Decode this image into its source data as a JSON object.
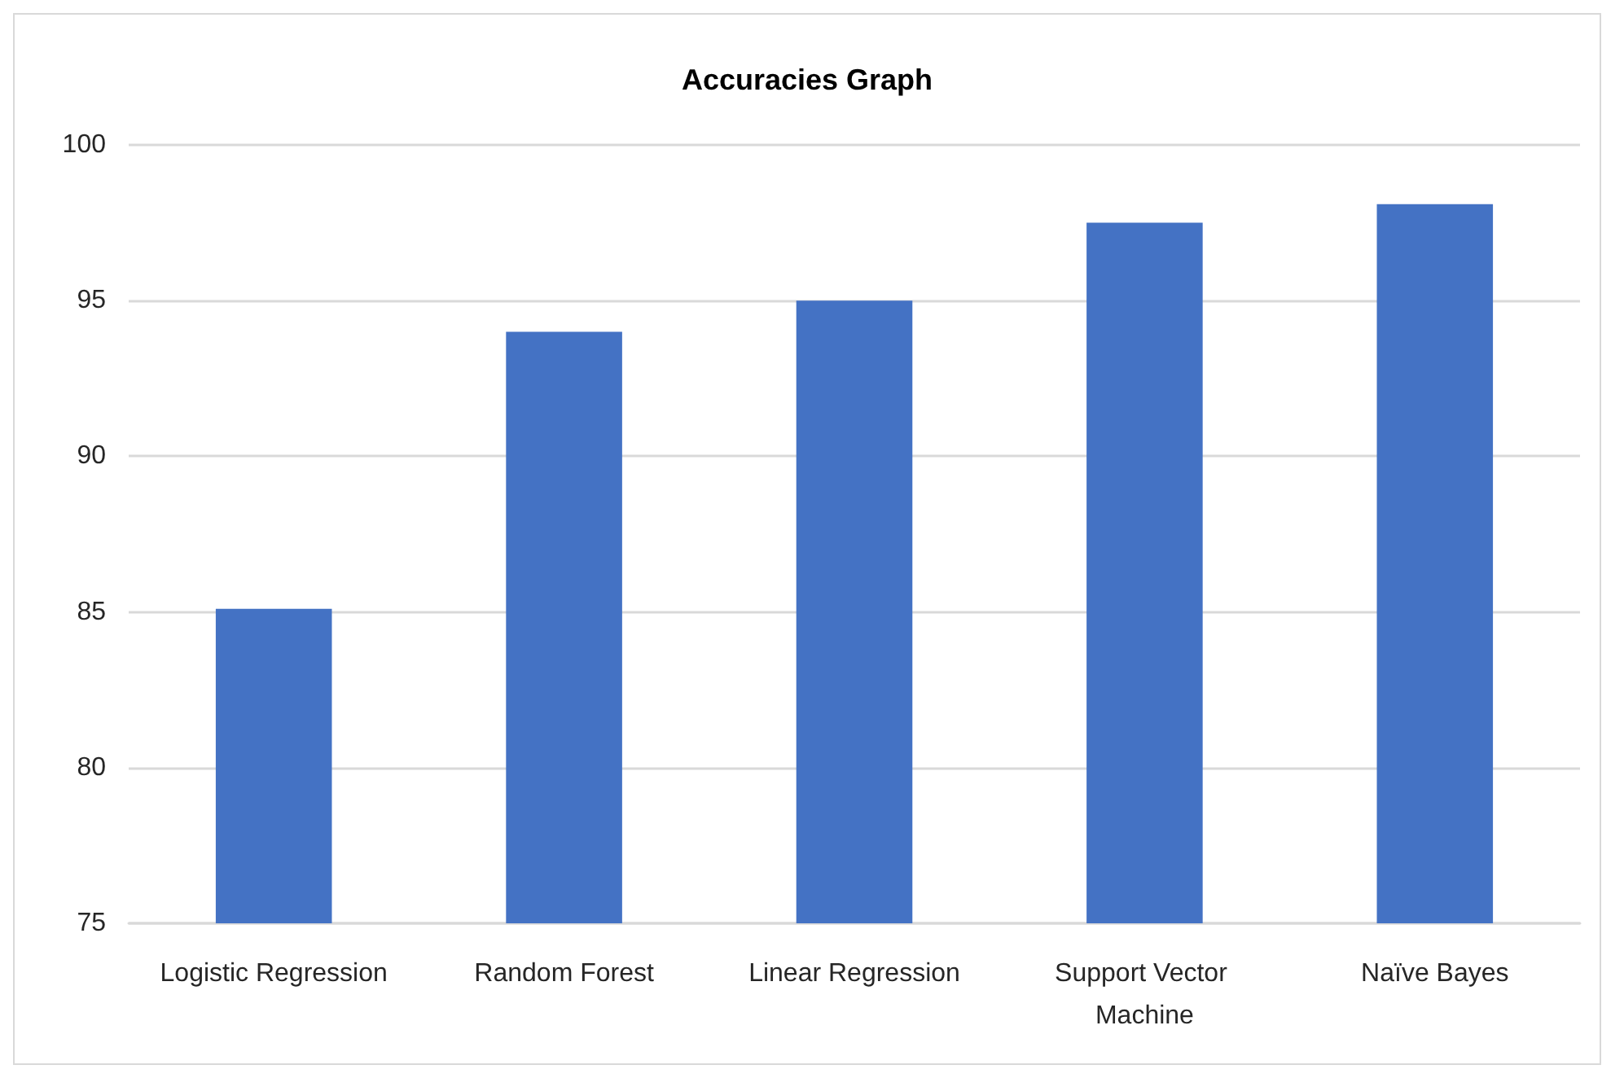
{
  "chart_data": {
    "type": "bar",
    "title": "Accuracies Graph",
    "categories": [
      "Logistic Regression",
      "Random Forest",
      "Linear Regression",
      "Support Vector Machine",
      "Naïve Bayes"
    ],
    "values": [
      85.1,
      94.0,
      95.0,
      97.5,
      98.1
    ],
    "color": "#4472c4",
    "ylim": [
      75,
      100
    ],
    "yticks": [
      75,
      80,
      85,
      90,
      95,
      100
    ],
    "grid": "y"
  }
}
